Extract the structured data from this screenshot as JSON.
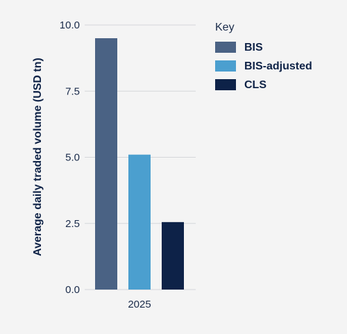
{
  "chart_data": {
    "type": "bar",
    "categories": [
      "2025"
    ],
    "series": [
      {
        "name": "BIS",
        "values": [
          9.5
        ],
        "color": "#4a6284"
      },
      {
        "name": "BIS-adjusted",
        "values": [
          5.1
        ],
        "color": "#4b9fcf"
      },
      {
        "name": "CLS",
        "values": [
          2.55
        ],
        "color": "#0d2248"
      }
    ],
    "ylabel": "Average daily traded volume (USD tn)",
    "xlabel": "",
    "ylim": [
      0,
      10
    ],
    "yticks": [
      0,
      2.5,
      5,
      7.5,
      10
    ],
    "ytick_labels": [
      "0.0",
      "2.5",
      "5.0",
      "7.5",
      "10.0"
    ],
    "legend": {
      "title": "Key",
      "placement": "right"
    },
    "grid": true
  }
}
